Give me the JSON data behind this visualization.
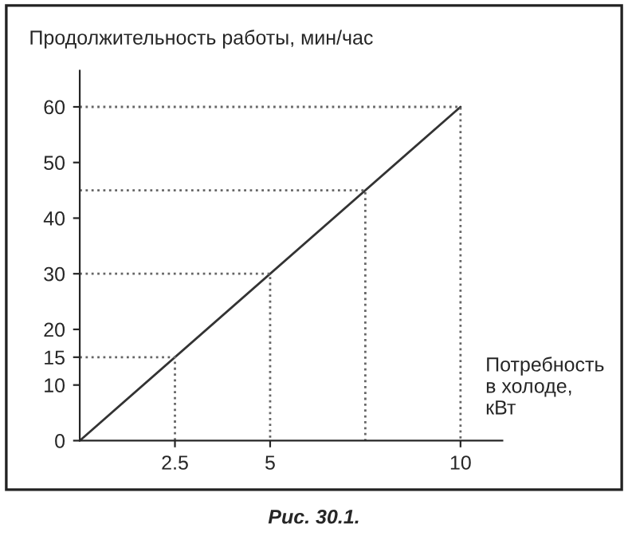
{
  "chart_data": {
    "type": "line",
    "xlabel": "Потребность\nв холоде,\nкВт",
    "ylabel": "Продолжительность работы, мин/час",
    "annotations": [
      "Рис. 30.1."
    ],
    "series": [
      {
        "color": "#333333",
        "x": [
          0,
          10
        ],
        "values": [
          0,
          60
        ],
        "line_style": "solid"
      },
      {
        "color": "#666666",
        "x": [
          0,
          2.5,
          2.5
        ],
        "values": [
          15,
          15,
          0
        ],
        "line_style": "dotted"
      },
      {
        "color": "#666666",
        "x": [
          0,
          5,
          5
        ],
        "values": [
          30,
          30,
          0
        ],
        "line_style": "dotted"
      },
      {
        "color": "#666666",
        "x": [
          0,
          7.5,
          7.5
        ],
        "values": [
          45,
          45,
          0
        ],
        "line_style": "dotted"
      },
      {
        "color": "#666666",
        "x": [
          0,
          10,
          10
        ],
        "values": [
          60,
          60,
          0
        ],
        "line_style": "dotted"
      }
    ],
    "xlim": [
      0,
      11.1
    ],
    "ylim": [
      0,
      66.5
    ],
    "xticks": [
      2.5,
      5,
      10
    ],
    "yticks": [
      0,
      10,
      15,
      20,
      30,
      40,
      50,
      60
    ],
    "grid": false,
    "marker": "none"
  }
}
